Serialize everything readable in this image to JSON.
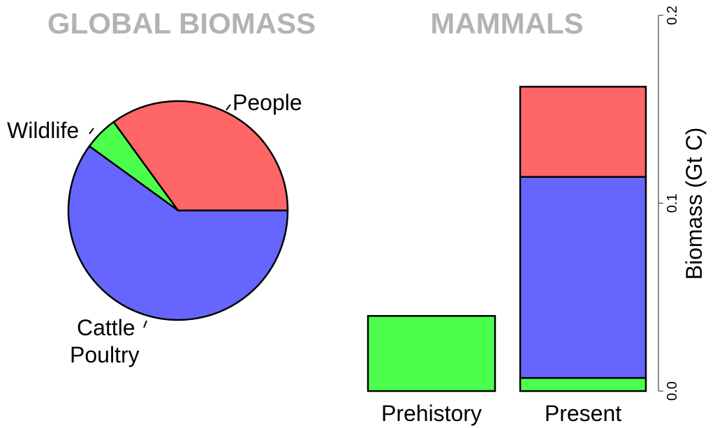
{
  "chart_data": [
    {
      "type": "pie",
      "title": "GLOBAL BIOMASS",
      "slices": [
        {
          "label": "People",
          "value": 35,
          "color": "#ff6666"
        },
        {
          "label": "Wildlife",
          "value": 5,
          "color": "#4dff4d"
        },
        {
          "label": "Cattle\nPoultry",
          "label_lines": [
            "Cattle",
            "Poultry"
          ],
          "value": 60,
          "color": "#6666ff"
        }
      ],
      "start_angle_deg": 0,
      "direction": "counterclockwise"
    },
    {
      "type": "bar",
      "stacked": true,
      "title": "MAMMALS",
      "categories": [
        "Prehistory",
        "Present"
      ],
      "series": [
        {
          "key": "wildlife",
          "color": "#4dff4d",
          "values": [
            0.04,
            0.007
          ]
        },
        {
          "key": "cattle_poultry",
          "color": "#6666ff",
          "values": [
            0,
            0.107
          ]
        },
        {
          "key": "people",
          "color": "#ff6666",
          "values": [
            0,
            0.048
          ]
        }
      ],
      "ylabel": "Biomass (Gt C)",
      "ylim": [
        0,
        0.2
      ],
      "yticks": [
        "0.0",
        "0.1",
        "0.2"
      ],
      "yaxis_side": "right",
      "grid": false
    }
  ]
}
